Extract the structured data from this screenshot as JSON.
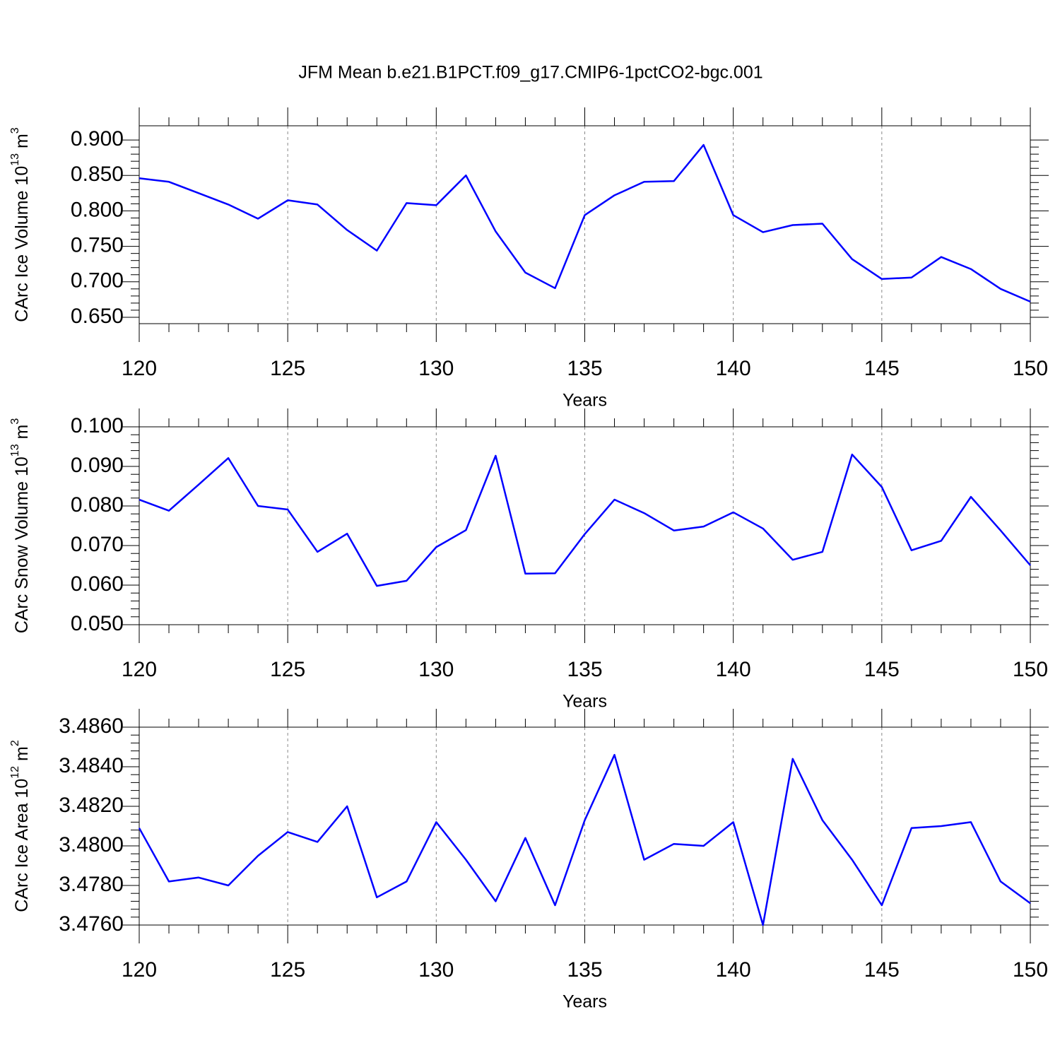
{
  "title": "JFM Mean b.e21.B1PCT.f09_g17.CMIP6-1pctCO2-bgc.001",
  "chart_data": [
    {
      "type": "line",
      "color": "#0000ff",
      "xgrid": true,
      "ylabel": {
        "text": "CArc Ice Volume 10",
        "exponent": "13",
        "unit": " m",
        "unit_exponent": "3"
      },
      "xlabel": "Years",
      "x": [
        120,
        121,
        122,
        123,
        124,
        125,
        126,
        127,
        128,
        129,
        130,
        131,
        132,
        133,
        134,
        135,
        136,
        137,
        138,
        139,
        140,
        141,
        142,
        143,
        144,
        145,
        146,
        147,
        148,
        149,
        150
      ],
      "values": [
        0.846,
        0.841,
        0.825,
        0.809,
        0.789,
        0.815,
        0.809,
        0.773,
        0.744,
        0.811,
        0.808,
        0.85,
        0.771,
        0.713,
        0.691,
        0.794,
        0.822,
        0.841,
        0.842,
        0.893,
        0.794,
        0.77,
        0.78,
        0.782,
        0.732,
        0.704,
        0.706,
        0.735,
        0.718,
        0.69,
        0.672
      ],
      "xlim": [
        120,
        150
      ],
      "xticks": [
        120,
        125,
        130,
        135,
        140,
        145,
        150
      ],
      "ylim": [
        0.641,
        0.92
      ],
      "yticks": [
        {
          "value": 0.65,
          "label": "0.650"
        },
        {
          "value": 0.7,
          "label": "0.700"
        },
        {
          "value": 0.75,
          "label": "0.750"
        },
        {
          "value": 0.8,
          "label": "0.800"
        },
        {
          "value": 0.85,
          "label": "0.850"
        },
        {
          "value": 0.9,
          "label": "0.900"
        }
      ]
    },
    {
      "type": "line",
      "color": "#0000ff",
      "xgrid": true,
      "ylabel": {
        "text": "CArc Snow Volume 10",
        "exponent": "13",
        "unit": " m",
        "unit_exponent": "3"
      },
      "xlabel": "Years",
      "x": [
        120,
        121,
        122,
        123,
        124,
        125,
        126,
        127,
        128,
        129,
        130,
        131,
        132,
        133,
        134,
        135,
        136,
        137,
        138,
        139,
        140,
        141,
        142,
        143,
        144,
        145,
        146,
        147,
        148,
        149,
        150
      ],
      "values": [
        0.0816,
        0.0788,
        0.0854,
        0.0921,
        0.08,
        0.0791,
        0.0684,
        0.073,
        0.0598,
        0.0611,
        0.0696,
        0.0739,
        0.0927,
        0.0629,
        0.063,
        0.0729,
        0.0816,
        0.0782,
        0.0738,
        0.0748,
        0.0784,
        0.0743,
        0.0664,
        0.0684,
        0.093,
        0.0848,
        0.0688,
        0.0712,
        0.0823,
        0.0738,
        0.065
      ],
      "xlim": [
        120,
        150
      ],
      "xticks": [
        120,
        125,
        130,
        135,
        140,
        145,
        150
      ],
      "ylim": [
        0.05,
        0.1
      ],
      "yticks": [
        {
          "value": 0.05,
          "label": "0.050"
        },
        {
          "value": 0.06,
          "label": "0.060"
        },
        {
          "value": 0.07,
          "label": "0.070"
        },
        {
          "value": 0.08,
          "label": "0.080"
        },
        {
          "value": 0.09,
          "label": "0.090"
        },
        {
          "value": 0.1,
          "label": "0.100"
        }
      ]
    },
    {
      "type": "line",
      "color": "#0000ff",
      "xgrid": true,
      "ylabel": {
        "text": "CArc Ice Area 10",
        "exponent": "12",
        "unit": " m",
        "unit_exponent": "2"
      },
      "xlabel": "Years",
      "x": [
        120,
        121,
        122,
        123,
        124,
        125,
        126,
        127,
        128,
        129,
        130,
        131,
        132,
        133,
        134,
        135,
        136,
        137,
        138,
        139,
        140,
        141,
        142,
        143,
        144,
        145,
        146,
        147,
        148,
        149,
        150
      ],
      "values": [
        3.4809,
        3.4782,
        3.4784,
        3.478,
        3.4795,
        3.4807,
        3.4802,
        3.482,
        3.4774,
        3.4782,
        3.4812,
        3.4793,
        3.4772,
        3.4804,
        3.477,
        3.4813,
        3.4846,
        3.4793,
        3.4801,
        3.48,
        3.4812,
        3.476,
        3.4844,
        3.4813,
        3.4793,
        3.477,
        3.4809,
        3.481,
        3.4812,
        3.4782,
        3.4771
      ],
      "xlim": [
        120,
        150
      ],
      "xticks": [
        120,
        125,
        130,
        135,
        140,
        145,
        150
      ],
      "ylim": [
        3.476,
        3.486
      ],
      "yticks": [
        {
          "value": 3.476,
          "label": "3.4760"
        },
        {
          "value": 3.478,
          "label": "3.4780"
        },
        {
          "value": 3.48,
          "label": "3.4800"
        },
        {
          "value": 3.482,
          "label": "3.4820"
        },
        {
          "value": 3.484,
          "label": "3.4840"
        },
        {
          "value": 3.486,
          "label": "3.4860"
        }
      ]
    }
  ]
}
